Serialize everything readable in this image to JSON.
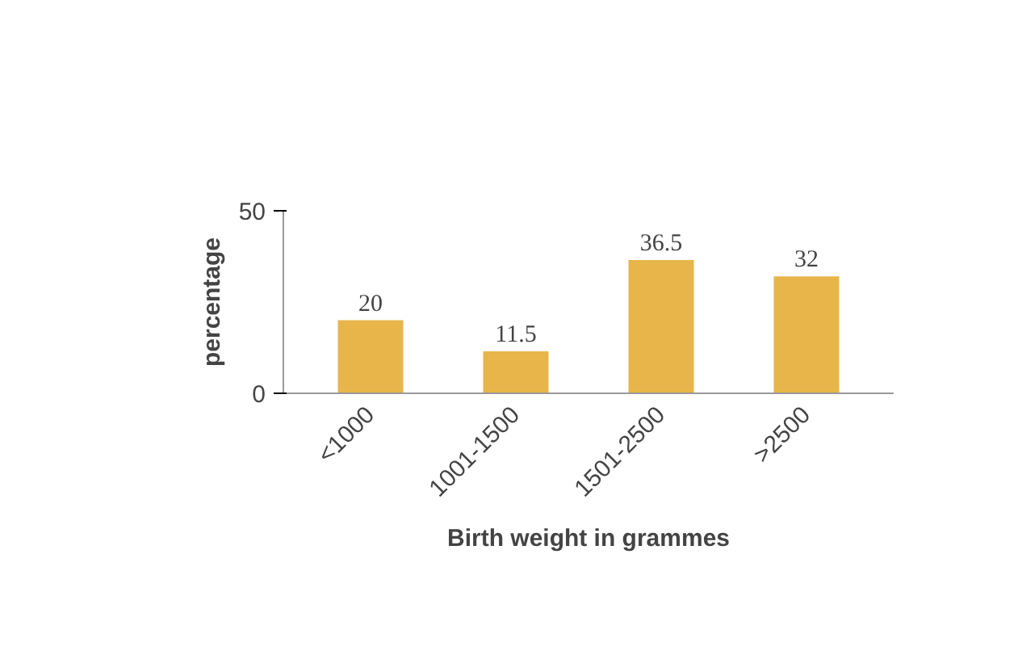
{
  "chart_data": {
    "type": "bar",
    "categories": [
      "<1000",
      "1001-1500",
      "1501-2500",
      ">2500"
    ],
    "values": [
      20,
      11.5,
      36.5,
      32
    ],
    "color": "#e8b54a",
    "xlabel": "Birth weight in grammes",
    "ylabel": "percentage",
    "ylim": [
      0,
      50
    ],
    "yticks": [
      0,
      50
    ],
    "grid": false,
    "data_labels": true
  }
}
